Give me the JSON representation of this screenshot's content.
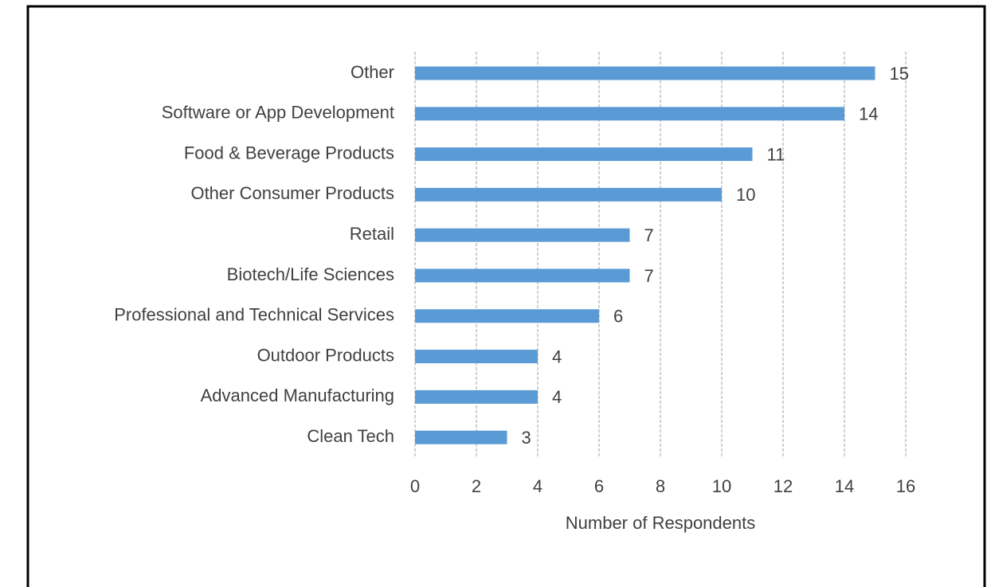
{
  "chart_data": {
    "type": "bar",
    "orientation": "horizontal",
    "categories": [
      "Other",
      "Software or App Development",
      "Food & Beverage Products",
      "Other Consumer Products",
      "Retail",
      "Biotech/Life Sciences",
      "Professional and Technical Services",
      "Outdoor Products",
      "Advanced Manufacturing",
      "Clean Tech"
    ],
    "values": [
      15,
      14,
      11,
      10,
      7,
      7,
      6,
      4,
      4,
      3
    ],
    "color": "#5b9bd5",
    "x_label": "Number of Respondents",
    "xlim": [
      0,
      16
    ],
    "xticks": [
      0,
      2,
      4,
      6,
      8,
      10,
      12,
      14,
      16
    ],
    "grid": true
  }
}
